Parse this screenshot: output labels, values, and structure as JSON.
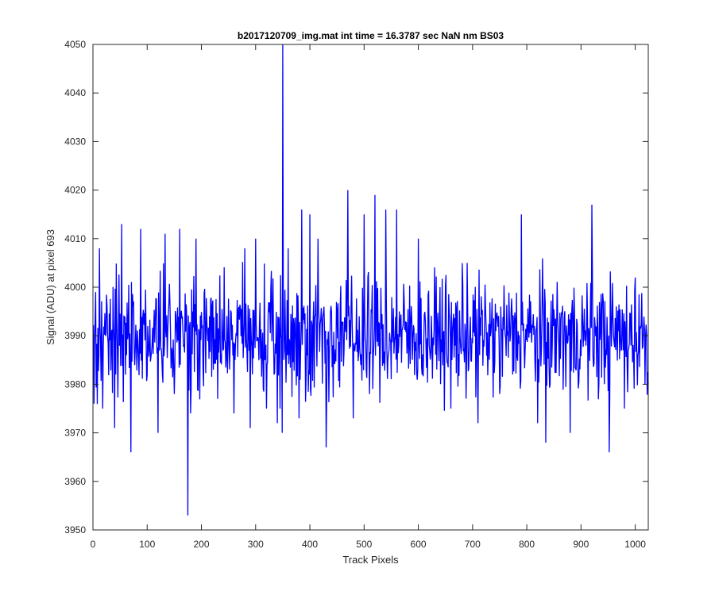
{
  "chart_data": {
    "type": "line",
    "title": "b2017120709_img.mat int time = 16.3787 sec  NaN nm BS03",
    "xlabel": "Track Pixels",
    "ylabel": "Signal (ADU) at pixel 693",
    "xlim": [
      0,
      1024
    ],
    "ylim": [
      3950,
      4050
    ],
    "grid": false,
    "legend": "none",
    "x_ticks": [
      0,
      100,
      200,
      300,
      400,
      500,
      600,
      700,
      800,
      900,
      1000
    ],
    "y_ticks": [
      3950,
      3960,
      3970,
      3980,
      3990,
      4000,
      4010,
      4020,
      4030,
      4040,
      4050
    ],
    "series": [
      {
        "color": "#0000ff",
        "x_start": 1,
        "x_step": 1,
        "mean": 3990,
        "noise_amplitude": 8,
        "notable_points": [
          [
            2,
            3976
          ],
          [
            5,
            3999
          ],
          [
            12,
            4008
          ],
          [
            18,
            3975
          ],
          [
            40,
            3971
          ],
          [
            53,
            4013
          ],
          [
            70,
            3966
          ],
          [
            88,
            4012
          ],
          [
            120,
            3970
          ],
          [
            133,
            4011
          ],
          [
            150,
            3978
          ],
          [
            160,
            4012
          ],
          [
            175,
            3953
          ],
          [
            180,
            3974
          ],
          [
            190,
            4010
          ],
          [
            230,
            3977
          ],
          [
            260,
            3974
          ],
          [
            280,
            4008
          ],
          [
            290,
            3971
          ],
          [
            300,
            4010
          ],
          [
            320,
            3975
          ],
          [
            340,
            3972
          ],
          [
            345,
            3975
          ],
          [
            349,
            3970
          ],
          [
            350,
            4050
          ],
          [
            352,
            3985
          ],
          [
            360,
            4008
          ],
          [
            380,
            3973
          ],
          [
            385,
            4016
          ],
          [
            400,
            4015
          ],
          [
            415,
            4010
          ],
          [
            430,
            3967
          ],
          [
            470,
            4020
          ],
          [
            480,
            3973
          ],
          [
            500,
            4015
          ],
          [
            510,
            3978
          ],
          [
            520,
            4019
          ],
          [
            540,
            4016
          ],
          [
            560,
            4016
          ],
          [
            600,
            4010
          ],
          [
            640,
            4000
          ],
          [
            660,
            3975
          ],
          [
            690,
            4005
          ],
          [
            710,
            3972
          ],
          [
            750,
            3978
          ],
          [
            790,
            4015
          ],
          [
            820,
            3972
          ],
          [
            835,
            3968
          ],
          [
            880,
            3970
          ],
          [
            920,
            4017
          ],
          [
            952,
            3966
          ],
          [
            980,
            3975
          ],
          [
            1000,
            4002
          ],
          [
            1024,
            3980
          ]
        ]
      }
    ]
  }
}
